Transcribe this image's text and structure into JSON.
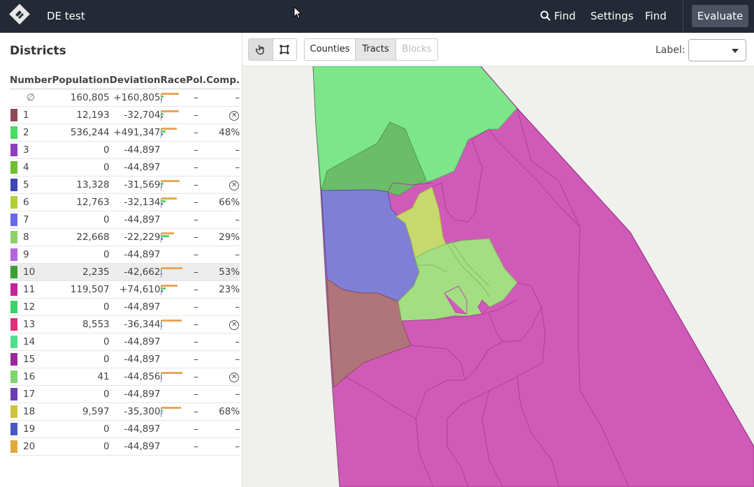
{
  "header": {
    "app_title": "DE test",
    "nav": [
      {
        "label": "Find",
        "icon": "search-icon"
      },
      {
        "label": "Settings"
      },
      {
        "label": "Find"
      }
    ],
    "evaluate_label": "Evaluate"
  },
  "sidebar": {
    "title": "Districts",
    "columns": [
      "Number",
      "Population",
      "Deviation",
      "Race",
      "Pol.",
      "Comp."
    ],
    "unassigned": {
      "number": "∅",
      "population": "160,805",
      "deviation": "+160,805",
      "pol": "–",
      "comp": "–"
    },
    "rows": [
      {
        "number": "1",
        "color": "#8e4b57",
        "population": "12,193",
        "deviation": "-32,704",
        "pol": "–",
        "comp": "",
        "comp_icon": "invalid-icon",
        "race": [
          0.78,
          0.1,
          0.05
        ]
      },
      {
        "number": "2",
        "color": "#4cd964",
        "population": "536,244",
        "deviation": "+491,347",
        "pol": "–",
        "comp": "48%",
        "race": [
          0.7,
          0.2,
          0.05
        ]
      },
      {
        "number": "3",
        "color": "#8e3fbd",
        "population": "0",
        "deviation": "-44,897",
        "pol": "–",
        "comp": "–",
        "race": []
      },
      {
        "number": "4",
        "color": "#6fbe2e",
        "population": "0",
        "deviation": "-44,897",
        "pol": "–",
        "comp": "–",
        "race": []
      },
      {
        "number": "5",
        "color": "#4046b3",
        "population": "13,328",
        "deviation": "-31,569",
        "pol": "–",
        "comp": "",
        "comp_icon": "invalid-icon",
        "race": [
          0.8,
          0.1,
          0.04
        ]
      },
      {
        "number": "6",
        "color": "#b3cf3a",
        "population": "12,763",
        "deviation": "-32,134",
        "pol": "–",
        "comp": "66%",
        "race": [
          0.7,
          0.2,
          0.05
        ]
      },
      {
        "number": "7",
        "color": "#6b6be8",
        "population": "0",
        "deviation": "-44,897",
        "pol": "–",
        "comp": "–",
        "race": []
      },
      {
        "number": "8",
        "color": "#8ed16a",
        "population": "22,668",
        "deviation": "-22,229",
        "pol": "–",
        "comp": "29%",
        "race": [
          0.55,
          0.35,
          0.05
        ]
      },
      {
        "number": "9",
        "color": "#b565e0",
        "population": "0",
        "deviation": "-44,897",
        "pol": "–",
        "comp": "–",
        "race": []
      },
      {
        "number": "10",
        "color": "#3c9e34",
        "population": "2,235",
        "deviation": "-42,662",
        "pol": "–",
        "comp": "53%",
        "race": [
          0.95,
          0.03,
          0.01
        ],
        "selected": true
      },
      {
        "number": "11",
        "color": "#c4249b",
        "population": "119,507",
        "deviation": "+74,610",
        "pol": "–",
        "comp": "23%",
        "race": [
          0.72,
          0.18,
          0.06
        ]
      },
      {
        "number": "12",
        "color": "#3fcf6a",
        "population": "0",
        "deviation": "-44,897",
        "pol": "–",
        "comp": "–",
        "race": []
      },
      {
        "number": "13",
        "color": "#e0307a",
        "population": "8,553",
        "deviation": "-36,344",
        "pol": "–",
        "comp": "",
        "comp_icon": "invalid-icon",
        "race": [
          0.9,
          0.04,
          0.02
        ]
      },
      {
        "number": "14",
        "color": "#52dc8e",
        "population": "0",
        "deviation": "-44,897",
        "pol": "–",
        "comp": "–",
        "race": []
      },
      {
        "number": "15",
        "color": "#9a2a9c",
        "population": "0",
        "deviation": "-44,897",
        "pol": "–",
        "comp": "–",
        "race": []
      },
      {
        "number": "16",
        "color": "#7fd66f",
        "population": "41",
        "deviation": "-44,856",
        "pol": "–",
        "comp": "",
        "comp_icon": "invalid-icon",
        "race": [
          0.95,
          0.02,
          0.01
        ]
      },
      {
        "number": "17",
        "color": "#6a3fb0",
        "population": "0",
        "deviation": "-44,897",
        "pol": "–",
        "comp": "–",
        "race": []
      },
      {
        "number": "18",
        "color": "#cfc13f",
        "population": "9,597",
        "deviation": "-35,300",
        "pol": "–",
        "comp": "68%",
        "race": [
          0.88,
          0.05,
          0.02
        ]
      },
      {
        "number": "19",
        "color": "#4a58c4",
        "population": "0",
        "deviation": "-44,897",
        "pol": "–",
        "comp": "–",
        "race": []
      },
      {
        "number": "20",
        "color": "#dfaa3e",
        "population": "0",
        "deviation": "-44,897",
        "pol": "–",
        "comp": "–",
        "race": []
      }
    ],
    "race_colors": [
      "#e8a65a",
      "#4cd964",
      "#6b6be8"
    ]
  },
  "toolbar": {
    "tools": [
      {
        "icon": "hand-pointer-icon",
        "active": true
      },
      {
        "icon": "rectangle-select-icon",
        "active": false
      }
    ],
    "levels": [
      {
        "label": "Counties",
        "state": "normal"
      },
      {
        "label": "Tracts",
        "state": "active"
      },
      {
        "label": "Blocks",
        "state": "disabled"
      }
    ],
    "label_text": "Label:",
    "label_value": ""
  }
}
